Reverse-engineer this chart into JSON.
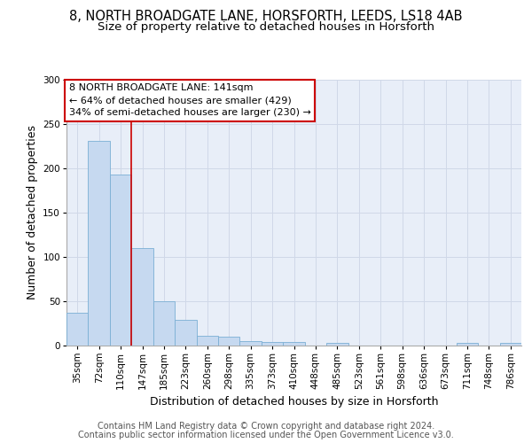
{
  "title_line1": "8, NORTH BROADGATE LANE, HORSFORTH, LEEDS, LS18 4AB",
  "title_line2": "Size of property relative to detached houses in Horsforth",
  "xlabel": "Distribution of detached houses by size in Horsforth",
  "ylabel": "Number of detached properties",
  "bar_labels": [
    "35sqm",
    "72sqm",
    "110sqm",
    "147sqm",
    "185sqm",
    "223sqm",
    "260sqm",
    "298sqm",
    "335sqm",
    "373sqm",
    "410sqm",
    "448sqm",
    "485sqm",
    "523sqm",
    "561sqm",
    "598sqm",
    "636sqm",
    "673sqm",
    "711sqm",
    "748sqm",
    "786sqm"
  ],
  "bar_values": [
    37,
    231,
    193,
    110,
    50,
    29,
    11,
    10,
    5,
    4,
    4,
    0,
    3,
    0,
    0,
    0,
    0,
    0,
    3,
    0,
    3
  ],
  "bar_color": "#c6d9f0",
  "bar_edge_color": "#7bafd4",
  "vline_x": 2.5,
  "vline_color": "#cc0000",
  "annotation_line1": "8 NORTH BROADGATE LANE: 141sqm",
  "annotation_line2": "← 64% of detached houses are smaller (429)",
  "annotation_line3": "34% of semi-detached houses are larger (230) →",
  "annotation_box_facecolor": "#ffffff",
  "annotation_box_edgecolor": "#cc0000",
  "ylim": [
    0,
    300
  ],
  "yticks": [
    0,
    50,
    100,
    150,
    200,
    250,
    300
  ],
  "grid_color": "#d0d8e8",
  "plot_bg_color": "#e8eef8",
  "fig_bg_color": "#ffffff",
  "title_fontsize": 10.5,
  "subtitle_fontsize": 9.5,
  "ylabel_fontsize": 9,
  "xlabel_fontsize": 9,
  "tick_fontsize": 7.5,
  "annotation_fontsize": 8,
  "footer_fontsize": 7,
  "footer_line1": "Contains HM Land Registry data © Crown copyright and database right 2024.",
  "footer_line2": "Contains public sector information licensed under the Open Government Licence v3.0."
}
